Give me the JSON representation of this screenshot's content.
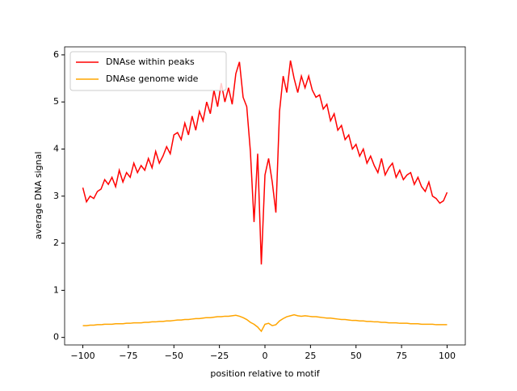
{
  "chart_data": {
    "type": "line",
    "x_label": "position relative to motif",
    "y_label": "average DNA signal",
    "x": [
      -100,
      -98,
      -96,
      -94,
      -92,
      -90,
      -88,
      -86,
      -84,
      -82,
      -80,
      -78,
      -76,
      -74,
      -72,
      -70,
      -68,
      -66,
      -64,
      -62,
      -60,
      -58,
      -56,
      -54,
      -52,
      -50,
      -48,
      -46,
      -44,
      -42,
      -40,
      -38,
      -36,
      -34,
      -32,
      -30,
      -28,
      -26,
      -24,
      -22,
      -20,
      -18,
      -16,
      -14,
      -12,
      -10,
      -8,
      -6,
      -4,
      -2,
      0,
      2,
      4,
      6,
      8,
      10,
      12,
      14,
      16,
      18,
      20,
      22,
      24,
      26,
      28,
      30,
      32,
      34,
      36,
      38,
      40,
      42,
      44,
      46,
      48,
      50,
      52,
      54,
      56,
      58,
      60,
      62,
      64,
      66,
      68,
      70,
      72,
      74,
      76,
      78,
      80,
      82,
      84,
      86,
      88,
      90,
      92,
      94,
      96,
      98,
      100
    ],
    "series": [
      {
        "name": "DNAse within peaks",
        "color": "#ff0000",
        "values": [
          3.18,
          2.88,
          3.0,
          2.95,
          3.1,
          3.15,
          3.35,
          3.25,
          3.4,
          3.2,
          3.55,
          3.3,
          3.5,
          3.4,
          3.7,
          3.5,
          3.65,
          3.55,
          3.8,
          3.6,
          3.95,
          3.7,
          3.85,
          4.05,
          3.9,
          4.3,
          4.35,
          4.2,
          4.55,
          4.3,
          4.7,
          4.4,
          4.8,
          4.6,
          5.0,
          4.75,
          5.25,
          4.9,
          5.4,
          5.0,
          5.3,
          4.95,
          5.6,
          5.85,
          5.1,
          4.9,
          3.95,
          2.45,
          3.9,
          1.55,
          3.45,
          3.8,
          3.3,
          2.65,
          4.8,
          5.55,
          5.2,
          5.88,
          5.5,
          5.2,
          5.55,
          5.3,
          5.55,
          5.25,
          5.1,
          5.15,
          4.85,
          4.95,
          4.6,
          4.75,
          4.4,
          4.5,
          4.2,
          4.3,
          4.0,
          4.1,
          3.85,
          4.0,
          3.7,
          3.85,
          3.65,
          3.5,
          3.8,
          3.45,
          3.6,
          3.7,
          3.4,
          3.55,
          3.35,
          3.45,
          3.5,
          3.25,
          3.4,
          3.2,
          3.1,
          3.3,
          3.0,
          2.95,
          2.85,
          2.9,
          3.08
        ]
      },
      {
        "name": "DNAse genome wide",
        "color": "#ffa500",
        "values": [
          0.25,
          0.25,
          0.26,
          0.26,
          0.27,
          0.27,
          0.28,
          0.28,
          0.28,
          0.29,
          0.29,
          0.29,
          0.3,
          0.3,
          0.31,
          0.31,
          0.31,
          0.32,
          0.32,
          0.33,
          0.33,
          0.34,
          0.34,
          0.35,
          0.35,
          0.36,
          0.37,
          0.37,
          0.38,
          0.38,
          0.39,
          0.4,
          0.4,
          0.41,
          0.42,
          0.42,
          0.43,
          0.44,
          0.44,
          0.45,
          0.45,
          0.46,
          0.47,
          0.45,
          0.42,
          0.38,
          0.32,
          0.28,
          0.22,
          0.13,
          0.28,
          0.3,
          0.25,
          0.27,
          0.35,
          0.4,
          0.44,
          0.46,
          0.48,
          0.46,
          0.45,
          0.46,
          0.45,
          0.44,
          0.44,
          0.43,
          0.42,
          0.41,
          0.41,
          0.4,
          0.39,
          0.38,
          0.38,
          0.37,
          0.36,
          0.36,
          0.35,
          0.35,
          0.34,
          0.34,
          0.33,
          0.33,
          0.32,
          0.32,
          0.31,
          0.31,
          0.31,
          0.3,
          0.3,
          0.3,
          0.29,
          0.29,
          0.29,
          0.28,
          0.28,
          0.28,
          0.28,
          0.27,
          0.27,
          0.27,
          0.27
        ]
      }
    ],
    "xlim": [
      -110,
      110
    ],
    "xticks": [
      {
        "value": -100,
        "label": "−100"
      },
      {
        "value": -75,
        "label": "−75"
      },
      {
        "value": -50,
        "label": "−50"
      },
      {
        "value": -25,
        "label": "−25"
      },
      0,
      25,
      50,
      75,
      100
    ],
    "ylim": [
      -0.16,
      6.17
    ],
    "yticks": [
      0,
      1,
      2,
      3,
      4,
      5,
      6
    ],
    "legend": "upper left"
  }
}
